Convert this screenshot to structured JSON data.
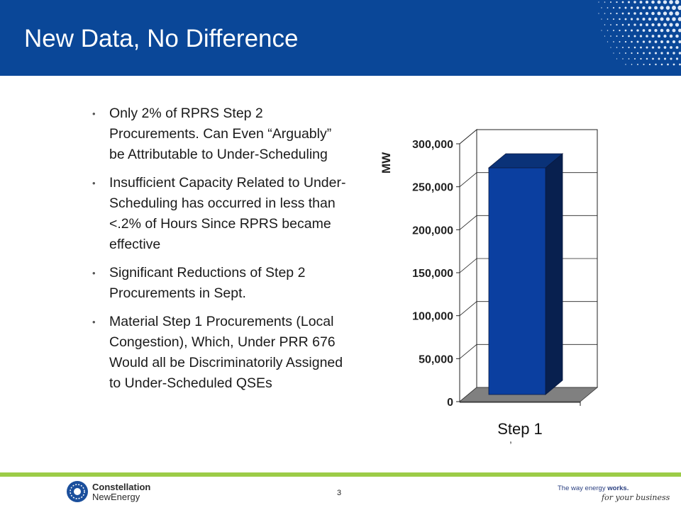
{
  "slide": {
    "title": "New Data, No Difference",
    "page_number": "3"
  },
  "bullets": [
    "Only 2% of RPRS Step 2 Procurements.  Can Even “Arguably” be Attributable to Under-Scheduling",
    "Insufficient Capacity Related to Under-Scheduling has occurred in less than <.2% of Hours Since RPRS became effective",
    "Significant Reductions of Step 2 Procurements in Sept.",
    "Material Step 1 Procurements (Local Congestion), Which, Under PRR 676 Would all be Discriminatorily Assigned to Under-Scheduled QSEs"
  ],
  "bullet_glyph": "•",
  "chart_data": {
    "type": "bar",
    "categories": [
      "Step 1"
    ],
    "values": [
      272000
    ],
    "ylabel": "MW",
    "ylim": [
      0,
      300000
    ],
    "yticks": [
      "0",
      "50,000",
      "100,000",
      "150,000",
      "200,000",
      "250,000",
      "300,000"
    ],
    "grid": true,
    "bar_color": "#0b3fa0",
    "stray_mark": ","
  },
  "footer": {
    "company_line1": "Constellation",
    "company_line2": "NewEnergy",
    "tagline_prefix": "The way energy ",
    "tagline_bold": "works.",
    "tagline_script": "for your business"
  },
  "colors": {
    "header": "#0a4798",
    "accent_bar": "#9ccc47"
  }
}
